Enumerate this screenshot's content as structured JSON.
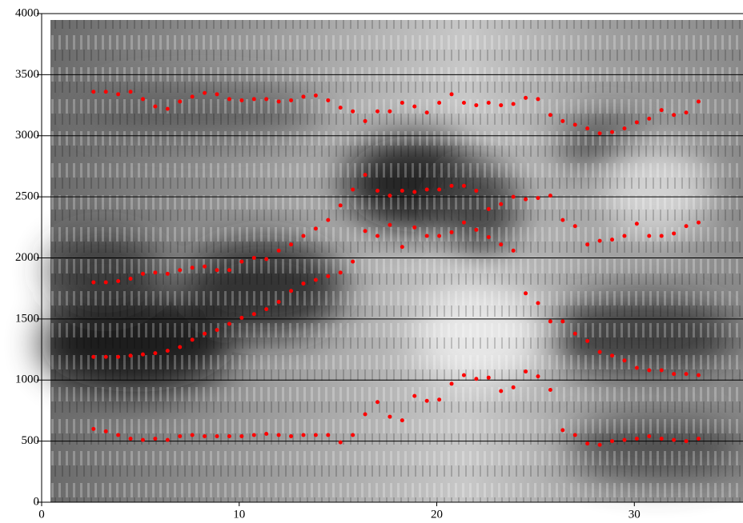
{
  "chart_data": {
    "type": "scatter",
    "x": [
      2.625,
      3.25,
      3.875,
      4.5,
      5.125,
      5.75,
      6.375,
      7,
      7.625,
      8.25,
      8.875,
      9.5,
      10.125,
      10.75,
      11.375,
      12,
      12.625,
      13.25,
      13.875,
      14.5,
      15.125,
      15.75,
      16.375,
      17,
      17.625,
      18.25,
      18.875,
      19.5,
      20.125,
      20.75,
      21.375,
      22,
      22.625,
      23.25,
      23.875,
      24.5,
      25.125,
      25.75,
      26.375,
      27,
      27.625,
      28.25,
      28.875,
      29.5,
      30.125,
      30.75,
      31.375,
      32,
      32.625,
      33.25
    ],
    "series": [
      {
        "color": "#ff0000",
        "values": [
          600,
          580,
          550,
          520,
          510,
          520,
          510,
          540,
          550,
          540,
          540,
          540,
          540,
          550,
          560,
          550,
          540,
          550,
          550,
          550,
          490,
          550,
          720,
          820,
          700,
          670,
          870,
          830,
          840,
          970,
          1040,
          1010,
          1020,
          910,
          940,
          1070,
          1030,
          920,
          590,
          550,
          480,
          470,
          500,
          510,
          520,
          540,
          520,
          510,
          500,
          520
        ]
      },
      {
        "color": "#ff0000",
        "values": [
          1190,
          1190,
          1190,
          1200,
          1210,
          1220,
          1240,
          1270,
          1330,
          1380,
          1410,
          1460,
          1510,
          1540,
          1580,
          1640,
          1730,
          1790,
          1820,
          1850,
          1880,
          1970,
          2220,
          2180,
          2270,
          2090,
          2250,
          2180,
          2180,
          2210,
          2290,
          2230,
          2170,
          2110,
          2060,
          1710,
          1630,
          1480,
          1480,
          1380,
          1320,
          1230,
          1200,
          1160,
          1100,
          1080,
          1080,
          1050,
          1050,
          1040
        ]
      },
      {
        "color": "#ff0000",
        "values": [
          1800,
          1800,
          1810,
          1830,
          1870,
          1880,
          1870,
          1900,
          1920,
          1930,
          1900,
          1900,
          1970,
          2000,
          1990,
          2060,
          2110,
          2180,
          2240,
          2310,
          2430,
          2560,
          2680,
          2550,
          2510,
          2550,
          2540,
          2560,
          2560,
          2590,
          2590,
          2550,
          2400,
          2440,
          2500,
          2480,
          2490,
          2510,
          2310,
          2260,
          2110,
          2140,
          2150,
          2180,
          2280,
          2180,
          2180,
          2200,
          2260,
          2290
        ]
      },
      {
        "color": "#ff0000",
        "values": [
          3360,
          3360,
          3340,
          3360,
          3300,
          3240,
          3220,
          3280,
          3320,
          3350,
          3340,
          3300,
          3290,
          3300,
          3300,
          3280,
          3290,
          3320,
          3330,
          3290,
          3230,
          3200,
          3120,
          3200,
          3200,
          3270,
          3240,
          3190,
          3270,
          3340,
          3270,
          3250,
          3270,
          3250,
          3260,
          3310,
          3300,
          3170,
          3120,
          3090,
          3060,
          3020,
          3030,
          3060,
          3110,
          3140,
          3210,
          3170,
          3190,
          3280
        ]
      }
    ],
    "xlim": [
      0,
      35.5
    ],
    "xticks": [
      0,
      10,
      20,
      30
    ],
    "ylim": [
      0,
      4000
    ],
    "yticks": [
      0,
      500,
      1000,
      1500,
      2000,
      2500,
      3000,
      3500,
      4000
    ],
    "grid": true
  }
}
